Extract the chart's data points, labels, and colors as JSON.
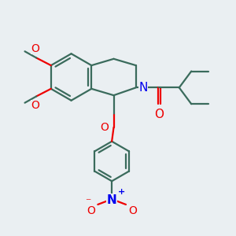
{
  "bg_color": "#eaeff2",
  "bond_color": "#3a6b5c",
  "bond_width": 1.6,
  "atom_colors": {
    "N": "#0000ee",
    "O": "#ee0000",
    "C": "#000000"
  },
  "font_size_atom": 10,
  "font_size_small": 8.5
}
